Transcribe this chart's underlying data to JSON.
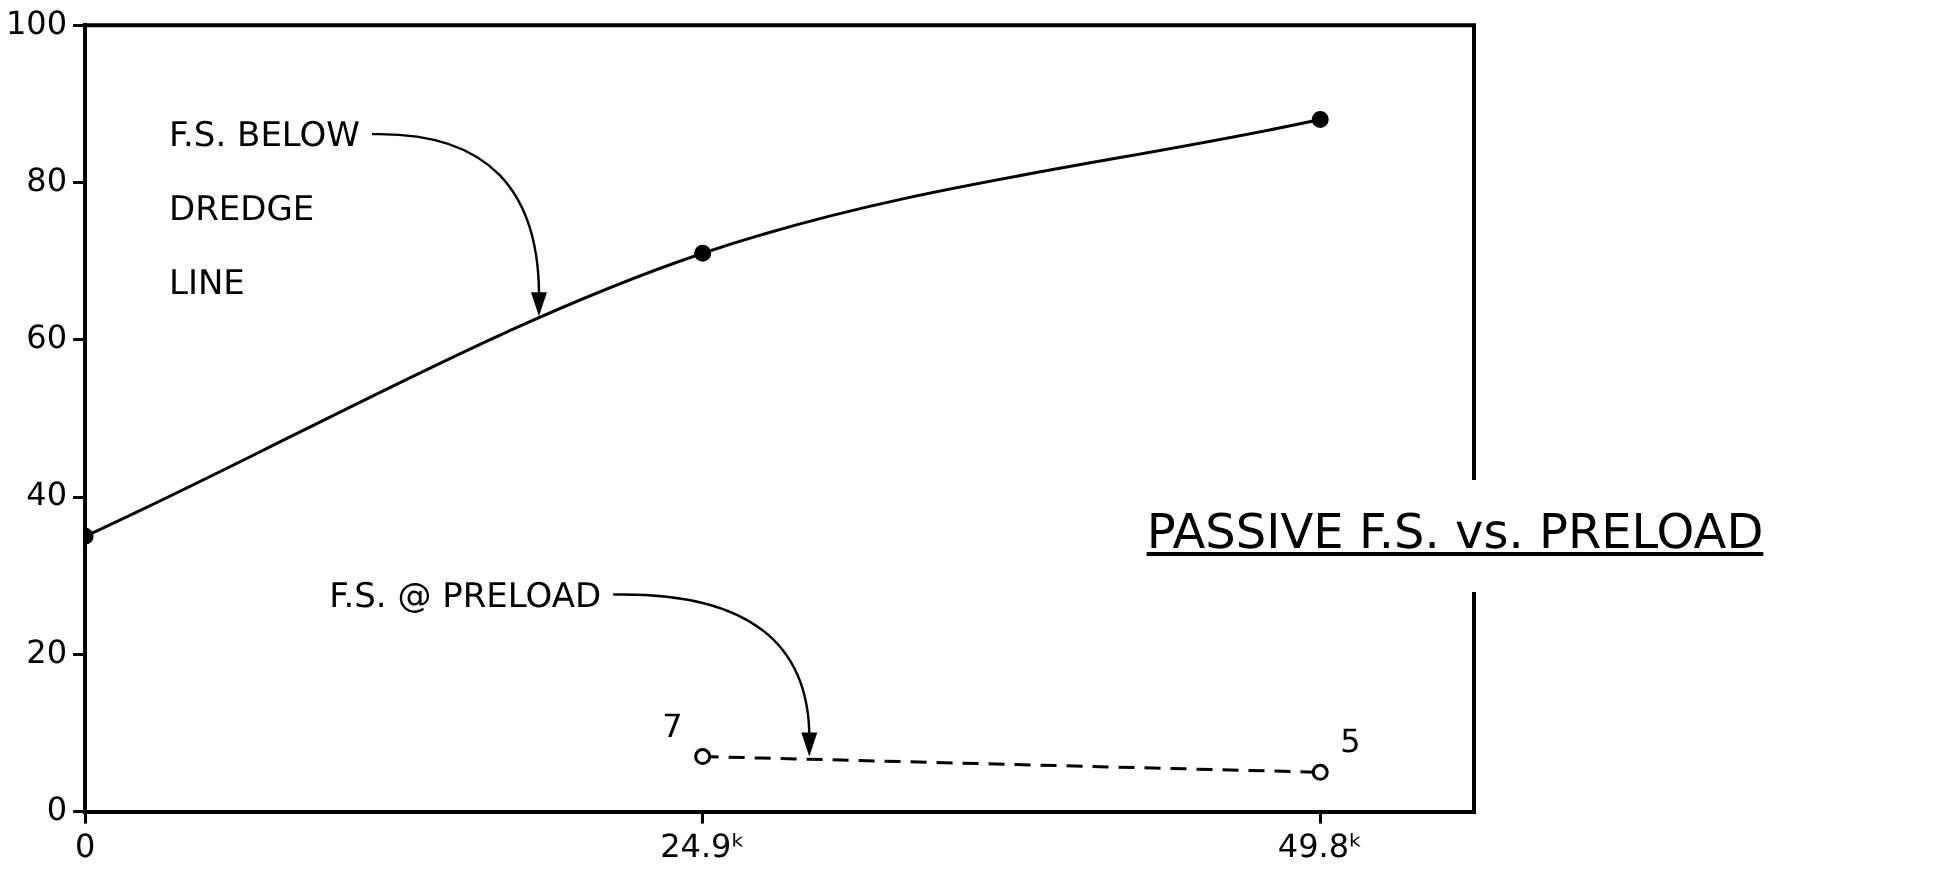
{
  "chart_data": {
    "type": "line",
    "title": "PASSIVE F.S. vs. PRELOAD",
    "xlim": [
      0,
      56
    ],
    "xticks": [
      0,
      {
        "value": 24.9,
        "label": "24.9ᵏ"
      },
      {
        "value": 49.8,
        "label": "49.8ᵏ"
      }
    ],
    "ylim": [
      0,
      100
    ],
    "yticks": [
      0,
      20,
      40,
      60,
      80,
      100
    ],
    "series": [
      {
        "color": "#000000",
        "x": [
          0,
          24.9,
          49.8
        ],
        "values": [
          35,
          71,
          88
        ],
        "marker": "circle",
        "line_style": "solid"
      },
      {
        "color": "#000000",
        "x": [
          24.9,
          49.8
        ],
        "values": [
          7,
          5
        ],
        "marker": "circle",
        "line_style": "dashed",
        "value_labels": [
          "7",
          "5"
        ]
      }
    ],
    "annotations": [
      {
        "text": "F.S. BELOW\nDREDGE\nLINE",
        "x": 18.3,
        "y": 63
      },
      {
        "text": "F.S. @ PRELOAD",
        "x": 29.2,
        "y": 7
      }
    ]
  }
}
